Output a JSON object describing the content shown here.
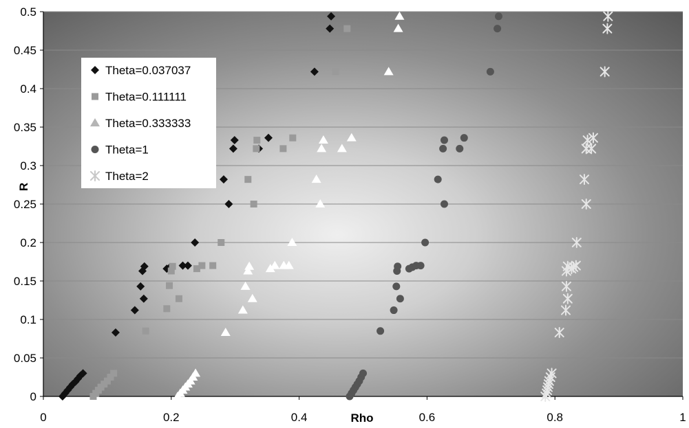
{
  "chart_data": {
    "type": "scatter",
    "xlabel": "Rho",
    "ylabel": "R",
    "xlim": [
      0,
      1
    ],
    "ylim": [
      0,
      0.5
    ],
    "x_ticks": [
      "0",
      "0.2",
      "0.4",
      "0.6",
      "0.8",
      "1"
    ],
    "y_ticks": [
      "0",
      "0.05",
      "0.1",
      "0.15",
      "0.2",
      "0.25",
      "0.3",
      "0.35",
      "0.4",
      "0.45",
      "0.5"
    ],
    "grid": "horizontal",
    "legend_position": "top-left",
    "series": [
      {
        "name": "Theta=0.037037",
        "marker": "diamond",
        "color": "#111111",
        "points": [
          [
            0.03,
            0.0
          ],
          [
            0.034,
            0.004
          ],
          [
            0.038,
            0.008
          ],
          [
            0.042,
            0.012
          ],
          [
            0.046,
            0.016
          ],
          [
            0.05,
            0.019
          ],
          [
            0.054,
            0.023
          ],
          [
            0.058,
            0.027
          ],
          [
            0.062,
            0.03
          ],
          [
            0.113,
            0.083
          ],
          [
            0.143,
            0.112
          ],
          [
            0.152,
            0.143
          ],
          [
            0.157,
            0.127
          ],
          [
            0.155,
            0.163
          ],
          [
            0.158,
            0.169
          ],
          [
            0.193,
            0.166
          ],
          [
            0.198,
            0.168
          ],
          [
            0.218,
            0.17
          ],
          [
            0.226,
            0.17
          ],
          [
            0.237,
            0.2
          ],
          [
            0.282,
            0.282
          ],
          [
            0.29,
            0.25
          ],
          [
            0.297,
            0.322
          ],
          [
            0.299,
            0.333
          ],
          [
            0.337,
            0.322
          ],
          [
            0.352,
            0.336
          ],
          [
            0.424,
            0.422
          ],
          [
            0.448,
            0.478
          ],
          [
            0.45,
            0.494
          ]
        ]
      },
      {
        "name": "Theta=0.111111",
        "marker": "square",
        "color": "#9a9a9a",
        "points": [
          [
            0.078,
            0.0
          ],
          [
            0.082,
            0.004
          ],
          [
            0.086,
            0.008
          ],
          [
            0.09,
            0.012
          ],
          [
            0.095,
            0.016
          ],
          [
            0.1,
            0.02
          ],
          [
            0.105,
            0.025
          ],
          [
            0.11,
            0.03
          ],
          [
            0.16,
            0.085
          ],
          [
            0.193,
            0.114
          ],
          [
            0.197,
            0.144
          ],
          [
            0.212,
            0.127
          ],
          [
            0.2,
            0.163
          ],
          [
            0.202,
            0.169
          ],
          [
            0.24,
            0.166
          ],
          [
            0.248,
            0.17
          ],
          [
            0.265,
            0.17
          ],
          [
            0.278,
            0.2
          ],
          [
            0.32,
            0.282
          ],
          [
            0.329,
            0.25
          ],
          [
            0.333,
            0.322
          ],
          [
            0.334,
            0.333
          ],
          [
            0.375,
            0.322
          ],
          [
            0.39,
            0.336
          ],
          [
            0.457,
            0.422
          ],
          [
            0.475,
            0.478
          ]
        ]
      },
      {
        "name": "Theta=0.333333",
        "marker": "triangle",
        "color": "#ffffff",
        "points": [
          [
            0.21,
            0.0
          ],
          [
            0.214,
            0.004
          ],
          [
            0.218,
            0.008
          ],
          [
            0.222,
            0.012
          ],
          [
            0.226,
            0.016
          ],
          [
            0.23,
            0.02
          ],
          [
            0.234,
            0.025
          ],
          [
            0.238,
            0.03
          ],
          [
            0.285,
            0.083
          ],
          [
            0.312,
            0.112
          ],
          [
            0.316,
            0.143
          ],
          [
            0.327,
            0.127
          ],
          [
            0.32,
            0.163
          ],
          [
            0.322,
            0.169
          ],
          [
            0.355,
            0.166
          ],
          [
            0.362,
            0.17
          ],
          [
            0.376,
            0.17
          ],
          [
            0.384,
            0.17
          ],
          [
            0.389,
            0.2
          ],
          [
            0.427,
            0.282
          ],
          [
            0.433,
            0.25
          ],
          [
            0.435,
            0.322
          ],
          [
            0.438,
            0.333
          ],
          [
            0.467,
            0.322
          ],
          [
            0.482,
            0.336
          ],
          [
            0.54,
            0.422
          ],
          [
            0.555,
            0.478
          ],
          [
            0.557,
            0.494
          ]
        ]
      },
      {
        "name": "Theta=1",
        "marker": "circle",
        "color": "#555555",
        "points": [
          [
            0.479,
            0.0
          ],
          [
            0.482,
            0.004
          ],
          [
            0.485,
            0.008
          ],
          [
            0.488,
            0.012
          ],
          [
            0.491,
            0.016
          ],
          [
            0.494,
            0.02
          ],
          [
            0.497,
            0.025
          ],
          [
            0.5,
            0.03
          ],
          [
            0.527,
            0.085
          ],
          [
            0.548,
            0.112
          ],
          [
            0.552,
            0.143
          ],
          [
            0.558,
            0.127
          ],
          [
            0.553,
            0.163
          ],
          [
            0.554,
            0.169
          ],
          [
            0.572,
            0.166
          ],
          [
            0.577,
            0.168
          ],
          [
            0.583,
            0.17
          ],
          [
            0.59,
            0.17
          ],
          [
            0.597,
            0.2
          ],
          [
            0.617,
            0.282
          ],
          [
            0.627,
            0.25
          ],
          [
            0.625,
            0.322
          ],
          [
            0.627,
            0.333
          ],
          [
            0.651,
            0.322
          ],
          [
            0.658,
            0.336
          ],
          [
            0.699,
            0.422
          ],
          [
            0.71,
            0.478
          ],
          [
            0.712,
            0.494
          ]
        ]
      },
      {
        "name": "Theta=2",
        "marker": "asterisk",
        "color": "#e6e6e6",
        "points": [
          [
            0.785,
            0.0
          ],
          [
            0.787,
            0.004
          ],
          [
            0.788,
            0.008
          ],
          [
            0.789,
            0.012
          ],
          [
            0.79,
            0.016
          ],
          [
            0.791,
            0.02
          ],
          [
            0.793,
            0.025
          ],
          [
            0.795,
            0.03
          ],
          [
            0.807,
            0.083
          ],
          [
            0.817,
            0.112
          ],
          [
            0.818,
            0.143
          ],
          [
            0.82,
            0.127
          ],
          [
            0.818,
            0.163
          ],
          [
            0.82,
            0.169
          ],
          [
            0.826,
            0.166
          ],
          [
            0.829,
            0.168
          ],
          [
            0.833,
            0.17
          ],
          [
            0.834,
            0.2
          ],
          [
            0.846,
            0.282
          ],
          [
            0.849,
            0.25
          ],
          [
            0.849,
            0.322
          ],
          [
            0.851,
            0.333
          ],
          [
            0.857,
            0.322
          ],
          [
            0.86,
            0.336
          ],
          [
            0.878,
            0.422
          ],
          [
            0.882,
            0.478
          ],
          [
            0.883,
            0.494
          ]
        ]
      }
    ]
  }
}
